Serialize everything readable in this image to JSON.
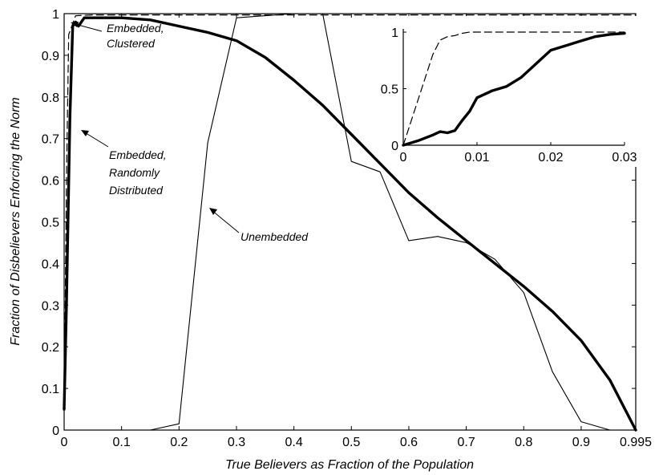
{
  "chart_data": [
    {
      "type": "line",
      "title": "",
      "xlabel": "True Believers as Fraction of the Population",
      "ylabel": "Fraction of Disbelievers Enforcing the Norm",
      "xlim": [
        0,
        0.995
      ],
      "ylim": [
        0,
        1
      ],
      "xticks": [
        "0",
        "0.1",
        "0.2",
        "0.3",
        "0.4",
        "0.5",
        "0.6",
        "0.7",
        "0.8",
        "0.9",
        "0.995"
      ],
      "xtick_values": [
        0,
        0.1,
        0.2,
        0.3,
        0.4,
        0.5,
        0.6,
        0.7,
        0.8,
        0.9,
        0.995
      ],
      "yticks": [
        "0",
        "0.1",
        "0.2",
        "0.3",
        "0.4",
        "0.5",
        "0.6",
        "0.7",
        "0.8",
        "0.9",
        "1"
      ],
      "ytick_values": [
        0,
        0.1,
        0.2,
        0.3,
        0.4,
        0.5,
        0.6,
        0.7,
        0.8,
        0.9,
        1
      ],
      "grid": false,
      "series": [
        {
          "name": "Embedded, Clustered",
          "style": "dashed",
          "x": [
            0,
            0.004,
            0.008,
            0.02,
            0.05,
            0.2,
            0.5,
            0.8,
            0.995
          ],
          "y": [
            0.05,
            0.6,
            0.95,
            0.995,
            0.997,
            0.997,
            0.997,
            0.997,
            0.997
          ]
        },
        {
          "name": "Embedded, Randomly Distributed",
          "style": "thick",
          "x": [
            0,
            0.004,
            0.01,
            0.015,
            0.02,
            0.025,
            0.03,
            0.035,
            0.05,
            0.1,
            0.15,
            0.2,
            0.25,
            0.3,
            0.35,
            0.4,
            0.45,
            0.5,
            0.55,
            0.6,
            0.65,
            0.7,
            0.75,
            0.8,
            0.85,
            0.9,
            0.95,
            0.995
          ],
          "y": [
            0.05,
            0.3,
            0.75,
            0.97,
            0.98,
            0.97,
            0.98,
            0.99,
            0.99,
            0.99,
            0.985,
            0.97,
            0.955,
            0.935,
            0.895,
            0.84,
            0.78,
            0.71,
            0.64,
            0.57,
            0.51,
            0.455,
            0.4,
            0.345,
            0.285,
            0.215,
            0.12,
            0.0
          ]
        },
        {
          "name": "Unembedded",
          "style": "thin",
          "x": [
            0,
            0.1,
            0.15,
            0.2,
            0.25,
            0.3,
            0.35,
            0.4,
            0.45,
            0.5,
            0.55,
            0.6,
            0.65,
            0.7,
            0.75,
            0.8,
            0.85,
            0.9,
            0.95,
            0.995
          ],
          "y": [
            0,
            0,
            0,
            0.015,
            0.69,
            0.99,
            0.995,
            1.0,
            1.0,
            0.645,
            0.62,
            0.455,
            0.465,
            0.45,
            0.41,
            0.33,
            0.14,
            0.02,
            0.0,
            0.0
          ]
        }
      ],
      "annotations": [
        {
          "text_lines": [
            "Embedded,",
            "Clustered"
          ],
          "points_to_series": "Embedded, Clustered"
        },
        {
          "text_lines": [
            "Embedded,",
            "Randomly",
            "Distributed"
          ],
          "points_to_series": "Embedded, Randomly Distributed"
        },
        {
          "text_lines": [
            "Unembedded"
          ],
          "points_to_series": "Unembedded"
        }
      ]
    },
    {
      "type": "line",
      "title": "",
      "xlabel": "",
      "ylabel": "",
      "xlim": [
        0,
        0.03
      ],
      "ylim": [
        0,
        1.05
      ],
      "xticks": [
        "0",
        "0.01",
        "0.02",
        "0.03"
      ],
      "xtick_values": [
        0,
        0.01,
        0.02,
        0.03
      ],
      "yticks": [
        "0",
        "0.5",
        "1"
      ],
      "ytick_values": [
        0,
        0.5,
        1
      ],
      "grid": false,
      "series": [
        {
          "name": "Embedded, Clustered",
          "style": "dashed",
          "x": [
            0,
            0.001,
            0.002,
            0.003,
            0.004,
            0.005,
            0.006,
            0.007,
            0.008,
            0.009,
            0.01,
            0.02,
            0.03
          ],
          "y": [
            0,
            0.2,
            0.4,
            0.6,
            0.8,
            0.93,
            0.96,
            0.97,
            0.99,
            1.0,
            1.0,
            1.0,
            1.0
          ]
        },
        {
          "name": "Embedded, Randomly Distributed",
          "style": "thick",
          "x": [
            0,
            0.002,
            0.004,
            0.005,
            0.006,
            0.007,
            0.008,
            0.009,
            0.01,
            0.012,
            0.014,
            0.016,
            0.018,
            0.02,
            0.022,
            0.024,
            0.026,
            0.028,
            0.03
          ],
          "y": [
            0,
            0.04,
            0.09,
            0.12,
            0.11,
            0.13,
            0.22,
            0.3,
            0.42,
            0.48,
            0.52,
            0.6,
            0.72,
            0.84,
            0.88,
            0.92,
            0.96,
            0.98,
            0.99
          ]
        }
      ]
    }
  ]
}
